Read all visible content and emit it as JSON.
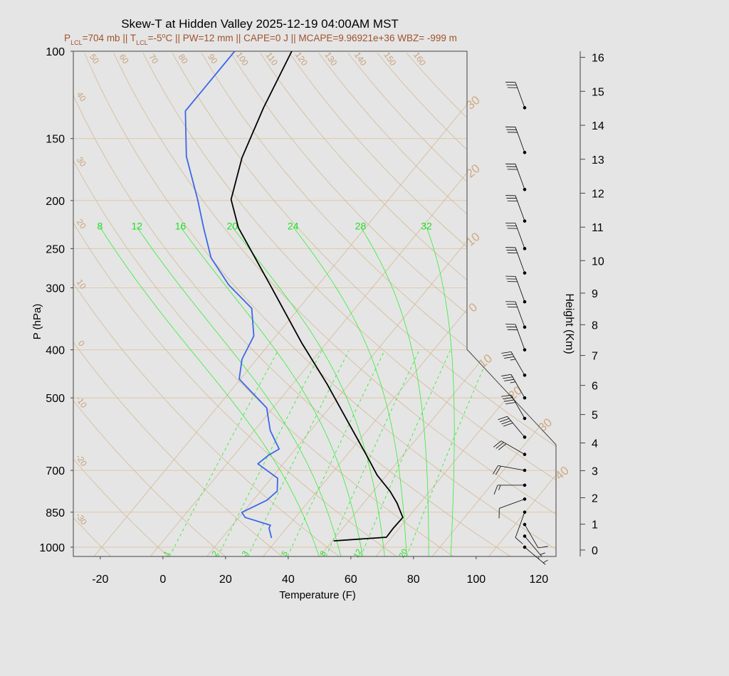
{
  "chart_data": {
    "type": "skewt",
    "title": "Skew-T at Hidden Valley 2025-12-19 04:00AM MST",
    "subtitle": [
      "P",
      "LCL",
      "=704 mb || T",
      "LCL",
      "=-5",
      "o",
      "C || PW=12 mm || CAPE=0 J || MCAPE=9.96921e+36 WBZ= -999 m"
    ],
    "subtitle_color": "#a0522d",
    "xlabel": "Temperature (F)",
    "ylabel": "P (hPa)",
    "y2label": "Height (Km)",
    "xlim": [
      -28.6,
      125.5
    ],
    "xticks": [
      -20,
      0,
      20,
      40,
      60,
      80,
      100,
      120
    ],
    "ylim": [
      1044,
      100
    ],
    "log_y": true,
    "yticks": [
      100,
      150,
      200,
      250,
      300,
      400,
      500,
      700,
      850,
      1000
    ],
    "y2ticks": [
      0,
      1,
      2,
      3,
      4,
      5,
      6,
      7,
      8,
      9,
      10,
      11,
      12,
      13,
      14,
      15,
      16
    ],
    "grid": true,
    "grid_color": "#e0c8a8",
    "series": [
      {
        "color": "#000000",
        "pressure": [
          971,
          955,
          915,
          871,
          815,
          771,
          716,
          653,
          563,
          469,
          388,
          296,
          227,
          199,
          164,
          130,
          100
        ],
        "values": [
          50.4,
          66.3,
          66.1,
          66.3,
          60.7,
          55.3,
          47.0,
          38.4,
          24.3,
          7.0,
          -11.8,
          -37.3,
          -62.5,
          -72.3,
          -79.8,
          -86.1,
          -92.0
        ]
      },
      {
        "color": "#3d68e6",
        "pressure": [
          958,
          915,
          903,
          871,
          851,
          804,
          771,
          726,
          679,
          653,
          634,
          582,
          524,
          458,
          418,
          375,
          330,
          296,
          261,
          227,
          199,
          163,
          132,
          100
        ],
        "values": [
          29.8,
          26.4,
          26.1,
          16.0,
          13.6,
          18.4,
          19.3,
          16.0,
          5.9,
          7.0,
          8.8,
          1.1,
          -6.0,
          -22.4,
          -26.7,
          -29.1,
          -37.0,
          -50.5,
          -63.3,
          -73.6,
          -83.0,
          -97.9,
          -110.2,
          -110.2
        ]
      }
    ],
    "dry_adiabats": [
      -30,
      -20,
      -10,
      0,
      10,
      20,
      30,
      40,
      50,
      60,
      70,
      80,
      90,
      100,
      110,
      120,
      130,
      140,
      150,
      160
    ],
    "dry_adiabat_color": "#d2b48c",
    "isotherms": [
      {
        "value": -30,
        "label": "30"
      },
      {
        "value": -20,
        "label": "20"
      },
      {
        "value": -10,
        "label": "10"
      },
      0,
      10,
      20,
      30,
      40
    ],
    "isotherm_color": "#d2b48c",
    "moist_adiabats": [
      8,
      12,
      16,
      20,
      24,
      28,
      32
    ],
    "moist_adiabat_color": "#33ee33",
    "mixing_ratios": [
      1,
      2,
      3,
      5,
      8,
      12,
      20
    ],
    "mixing_ratio_color": "#33ee33",
    "winds": {
      "pressure": [
        130,
        160,
        190,
        220,
        250,
        280,
        320,
        360,
        400,
        450,
        500,
        550,
        600,
        650,
        700,
        750,
        800,
        850,
        900,
        950,
        1000
      ],
      "speed": [
        30,
        30,
        30,
        30,
        30,
        30,
        30,
        30,
        30,
        35,
        35,
        40,
        40,
        30,
        20,
        15,
        10,
        10,
        10,
        5,
        5
      ],
      "direction": [
        340,
        340,
        340,
        340,
        340,
        340,
        340,
        340,
        340,
        330,
        330,
        330,
        320,
        300,
        280,
        270,
        250,
        200,
        150,
        140,
        130
      ],
      "color": "#000000"
    }
  }
}
